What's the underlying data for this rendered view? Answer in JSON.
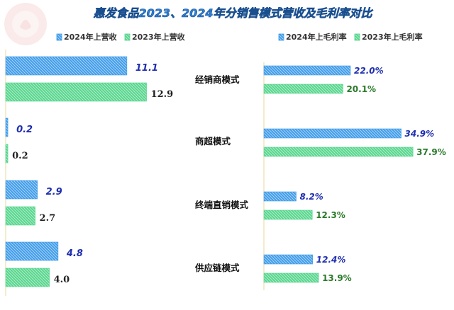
{
  "title": "惠发食品2023、2024年分销售模式营收及毛利率对比",
  "colors": {
    "blue": "#3d9be9",
    "blue_light": "#a9d2f6",
    "green": "#52d68a",
    "green_light": "#b5ebcb",
    "axis": "#e8d89a",
    "watermark": "#f6dada"
  },
  "chart_data": [
    {
      "type": "bar",
      "orientation": "horizontal",
      "categories": [
        "经销商模式",
        "商超模式",
        "终端直销模式",
        "供应链模式"
      ],
      "series": [
        {
          "name": "2024年上营收",
          "values": [
            11.1,
            0.2,
            2.9,
            4.8
          ]
        },
        {
          "name": "2023年上营收",
          "values": [
            12.9,
            0.2,
            2.7,
            4.0
          ]
        }
      ],
      "xlim": [
        0,
        14
      ],
      "grid": false,
      "legend": "top"
    },
    {
      "type": "bar",
      "orientation": "horizontal",
      "categories": [
        "经销商模式",
        "商超模式",
        "终端直销模式",
        "供应链模式"
      ],
      "series": [
        {
          "name": "2024年上毛利率",
          "values": [
            22.0,
            34.9,
            8.2,
            12.4
          ]
        },
        {
          "name": "2023年上毛利率",
          "values": [
            20.1,
            37.9,
            12.3,
            13.9
          ]
        }
      ],
      "value_suffix": "%",
      "xlim": [
        0,
        40
      ],
      "grid": false,
      "legend": "top"
    }
  ]
}
